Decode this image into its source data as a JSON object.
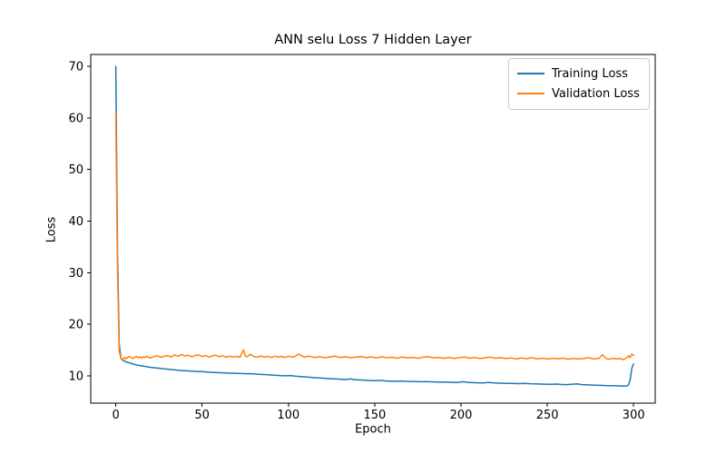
{
  "chart_data": {
    "type": "line",
    "title": "ANN selu Loss 7 Hidden Layer",
    "xlabel": "Epoch",
    "ylabel": "Loss",
    "xlim": [
      -14.5,
      312.5
    ],
    "ylim": [
      4.7,
      72.3
    ],
    "xticks": [
      0,
      50,
      100,
      150,
      200,
      250,
      300
    ],
    "yticks": [
      10,
      20,
      30,
      40,
      50,
      60,
      70
    ],
    "grid": false,
    "legend_position": "upper right",
    "series": [
      {
        "name": "Training Loss",
        "color": "#1f77b4",
        "points": [
          [
            0,
            70
          ],
          [
            1,
            34
          ],
          [
            2,
            16.2
          ],
          [
            3,
            13.3
          ],
          [
            4,
            13.05
          ],
          [
            5,
            12.85
          ],
          [
            6,
            12.7
          ],
          [
            7,
            12.6
          ],
          [
            8,
            12.5
          ],
          [
            9,
            12.4
          ],
          [
            10,
            12.28
          ],
          [
            12,
            12.1
          ],
          [
            14,
            11.98
          ],
          [
            16,
            11.88
          ],
          [
            18,
            11.76
          ],
          [
            20,
            11.66
          ],
          [
            23,
            11.54
          ],
          [
            26,
            11.44
          ],
          [
            29,
            11.32
          ],
          [
            32,
            11.22
          ],
          [
            35,
            11.12
          ],
          [
            38,
            11.02
          ],
          [
            41,
            10.96
          ],
          [
            44,
            10.9
          ],
          [
            47,
            10.85
          ],
          [
            50,
            10.8
          ],
          [
            53,
            10.73
          ],
          [
            56,
            10.66
          ],
          [
            59,
            10.62
          ],
          [
            62,
            10.58
          ],
          [
            65,
            10.53
          ],
          [
            68,
            10.5
          ],
          [
            71,
            10.46
          ],
          [
            74,
            10.43
          ],
          [
            77,
            10.4
          ],
          [
            80,
            10.37
          ],
          [
            83,
            10.3
          ],
          [
            86,
            10.24
          ],
          [
            89,
            10.18
          ],
          [
            92,
            10.12
          ],
          [
            95,
            10.06
          ],
          [
            98,
            10.0
          ],
          [
            101,
            10.06
          ],
          [
            104,
            9.92
          ],
          [
            107,
            9.86
          ],
          [
            110,
            9.78
          ],
          [
            113,
            9.7
          ],
          [
            116,
            9.63
          ],
          [
            119,
            9.56
          ],
          [
            122,
            9.5
          ],
          [
            125,
            9.43
          ],
          [
            128,
            9.38
          ],
          [
            131,
            9.33
          ],
          [
            134,
            9.28
          ],
          [
            136,
            9.42
          ],
          [
            138,
            9.26
          ],
          [
            141,
            9.2
          ],
          [
            144,
            9.15
          ],
          [
            147,
            9.1
          ],
          [
            150,
            9.06
          ],
          [
            153,
            9.12
          ],
          [
            156,
            9.02
          ],
          [
            159,
            8.98
          ],
          [
            162,
            8.95
          ],
          [
            165,
            9.0
          ],
          [
            168,
            8.93
          ],
          [
            171,
            8.9
          ],
          [
            174,
            8.88
          ],
          [
            177,
            8.85
          ],
          [
            180,
            8.88
          ],
          [
            183,
            8.83
          ],
          [
            186,
            8.8
          ],
          [
            189,
            8.78
          ],
          [
            192,
            8.76
          ],
          [
            195,
            8.73
          ],
          [
            198,
            8.7
          ],
          [
            201,
            8.86
          ],
          [
            204,
            8.73
          ],
          [
            207,
            8.68
          ],
          [
            210,
            8.65
          ],
          [
            213,
            8.62
          ],
          [
            216,
            8.73
          ],
          [
            219,
            8.61
          ],
          [
            222,
            8.58
          ],
          [
            225,
            8.56
          ],
          [
            228,
            8.53
          ],
          [
            231,
            8.5
          ],
          [
            234,
            8.48
          ],
          [
            237,
            8.53
          ],
          [
            240,
            8.46
          ],
          [
            243,
            8.43
          ],
          [
            246,
            8.4
          ],
          [
            249,
            8.38
          ],
          [
            252,
            8.36
          ],
          [
            255,
            8.39
          ],
          [
            258,
            8.33
          ],
          [
            261,
            8.3
          ],
          [
            264,
            8.36
          ],
          [
            267,
            8.43
          ],
          [
            270,
            8.3
          ],
          [
            273,
            8.26
          ],
          [
            276,
            8.21
          ],
          [
            279,
            8.16
          ],
          [
            282,
            8.13
          ],
          [
            285,
            8.1
          ],
          [
            288,
            8.08
          ],
          [
            291,
            8.05
          ],
          [
            293,
            8.02
          ],
          [
            295,
            8.0
          ],
          [
            296,
            8.05
          ],
          [
            297,
            8.2
          ],
          [
            298,
            9.2
          ],
          [
            299,
            11.5
          ],
          [
            300,
            12.3
          ]
        ]
      },
      {
        "name": "Validation Loss",
        "color": "#ff7f0e",
        "points": [
          [
            0,
            61
          ],
          [
            1,
            30
          ],
          [
            2,
            14.8
          ],
          [
            3,
            13.3
          ],
          [
            4,
            13.15
          ],
          [
            5,
            13.55
          ],
          [
            6,
            13.3
          ],
          [
            7,
            13.6
          ],
          [
            8,
            13.78
          ],
          [
            9,
            13.5
          ],
          [
            10,
            13.35
          ],
          [
            11,
            13.6
          ],
          [
            12,
            13.76
          ],
          [
            13,
            13.5
          ],
          [
            14,
            13.66
          ],
          [
            15,
            13.45
          ],
          [
            16,
            13.7
          ],
          [
            17,
            13.55
          ],
          [
            18,
            13.8
          ],
          [
            19,
            13.6
          ],
          [
            20,
            13.46
          ],
          [
            22,
            13.7
          ],
          [
            24,
            13.9
          ],
          [
            26,
            13.6
          ],
          [
            28,
            13.76
          ],
          [
            30,
            13.95
          ],
          [
            32,
            13.65
          ],
          [
            34,
            14.05
          ],
          [
            36,
            13.8
          ],
          [
            38,
            14.1
          ],
          [
            40,
            13.85
          ],
          [
            42,
            14.0
          ],
          [
            44,
            13.7
          ],
          [
            46,
            13.95
          ],
          [
            48,
            14.05
          ],
          [
            50,
            13.75
          ],
          [
            52,
            13.9
          ],
          [
            54,
            13.65
          ],
          [
            56,
            13.85
          ],
          [
            58,
            14.0
          ],
          [
            60,
            13.7
          ],
          [
            62,
            13.9
          ],
          [
            64,
            13.6
          ],
          [
            66,
            13.8
          ],
          [
            68,
            13.65
          ],
          [
            70,
            13.76
          ],
          [
            72,
            13.6
          ],
          [
            74,
            15.05
          ],
          [
            75,
            13.9
          ],
          [
            76,
            13.7
          ],
          [
            78,
            14.15
          ],
          [
            80,
            13.75
          ],
          [
            82,
            13.6
          ],
          [
            84,
            13.85
          ],
          [
            86,
            13.62
          ],
          [
            88,
            13.76
          ],
          [
            90,
            13.55
          ],
          [
            92,
            13.8
          ],
          [
            94,
            13.65
          ],
          [
            96,
            13.75
          ],
          [
            98,
            13.56
          ],
          [
            100,
            13.8
          ],
          [
            103,
            13.6
          ],
          [
            106,
            14.2
          ],
          [
            109,
            13.65
          ],
          [
            112,
            13.8
          ],
          [
            115,
            13.56
          ],
          [
            118,
            13.7
          ],
          [
            121,
            13.5
          ],
          [
            124,
            13.66
          ],
          [
            127,
            13.8
          ],
          [
            130,
            13.55
          ],
          [
            133,
            13.7
          ],
          [
            136,
            13.5
          ],
          [
            139,
            13.62
          ],
          [
            142,
            13.75
          ],
          [
            145,
            13.52
          ],
          [
            148,
            13.66
          ],
          [
            151,
            13.46
          ],
          [
            154,
            13.68
          ],
          [
            157,
            13.5
          ],
          [
            160,
            13.6
          ],
          [
            163,
            13.42
          ],
          [
            166,
            13.65
          ],
          [
            169,
            13.48
          ],
          [
            172,
            13.58
          ],
          [
            175,
            13.4
          ],
          [
            178,
            13.6
          ],
          [
            181,
            13.72
          ],
          [
            184,
            13.48
          ],
          [
            187,
            13.58
          ],
          [
            190,
            13.4
          ],
          [
            193,
            13.55
          ],
          [
            196,
            13.38
          ],
          [
            199,
            13.5
          ],
          [
            202,
            13.65
          ],
          [
            205,
            13.42
          ],
          [
            208,
            13.56
          ],
          [
            211,
            13.35
          ],
          [
            214,
            13.5
          ],
          [
            217,
            13.62
          ],
          [
            220,
            13.4
          ],
          [
            223,
            13.52
          ],
          [
            226,
            13.35
          ],
          [
            229,
            13.46
          ],
          [
            232,
            13.28
          ],
          [
            235,
            13.45
          ],
          [
            238,
            13.32
          ],
          [
            241,
            13.5
          ],
          [
            244,
            13.28
          ],
          [
            247,
            13.42
          ],
          [
            250,
            13.25
          ],
          [
            253,
            13.4
          ],
          [
            256,
            13.3
          ],
          [
            259,
            13.42
          ],
          [
            262,
            13.22
          ],
          [
            265,
            13.38
          ],
          [
            268,
            13.25
          ],
          [
            271,
            13.35
          ],
          [
            274,
            13.5
          ],
          [
            277,
            13.25
          ],
          [
            280,
            13.4
          ],
          [
            282,
            14.1
          ],
          [
            284,
            13.35
          ],
          [
            286,
            13.2
          ],
          [
            288,
            13.4
          ],
          [
            290,
            13.26
          ],
          [
            292,
            13.35
          ],
          [
            294,
            13.15
          ],
          [
            296,
            13.45
          ],
          [
            297,
            13.9
          ],
          [
            298,
            13.55
          ],
          [
            299,
            14.2
          ],
          [
            300,
            13.95
          ]
        ]
      }
    ]
  }
}
